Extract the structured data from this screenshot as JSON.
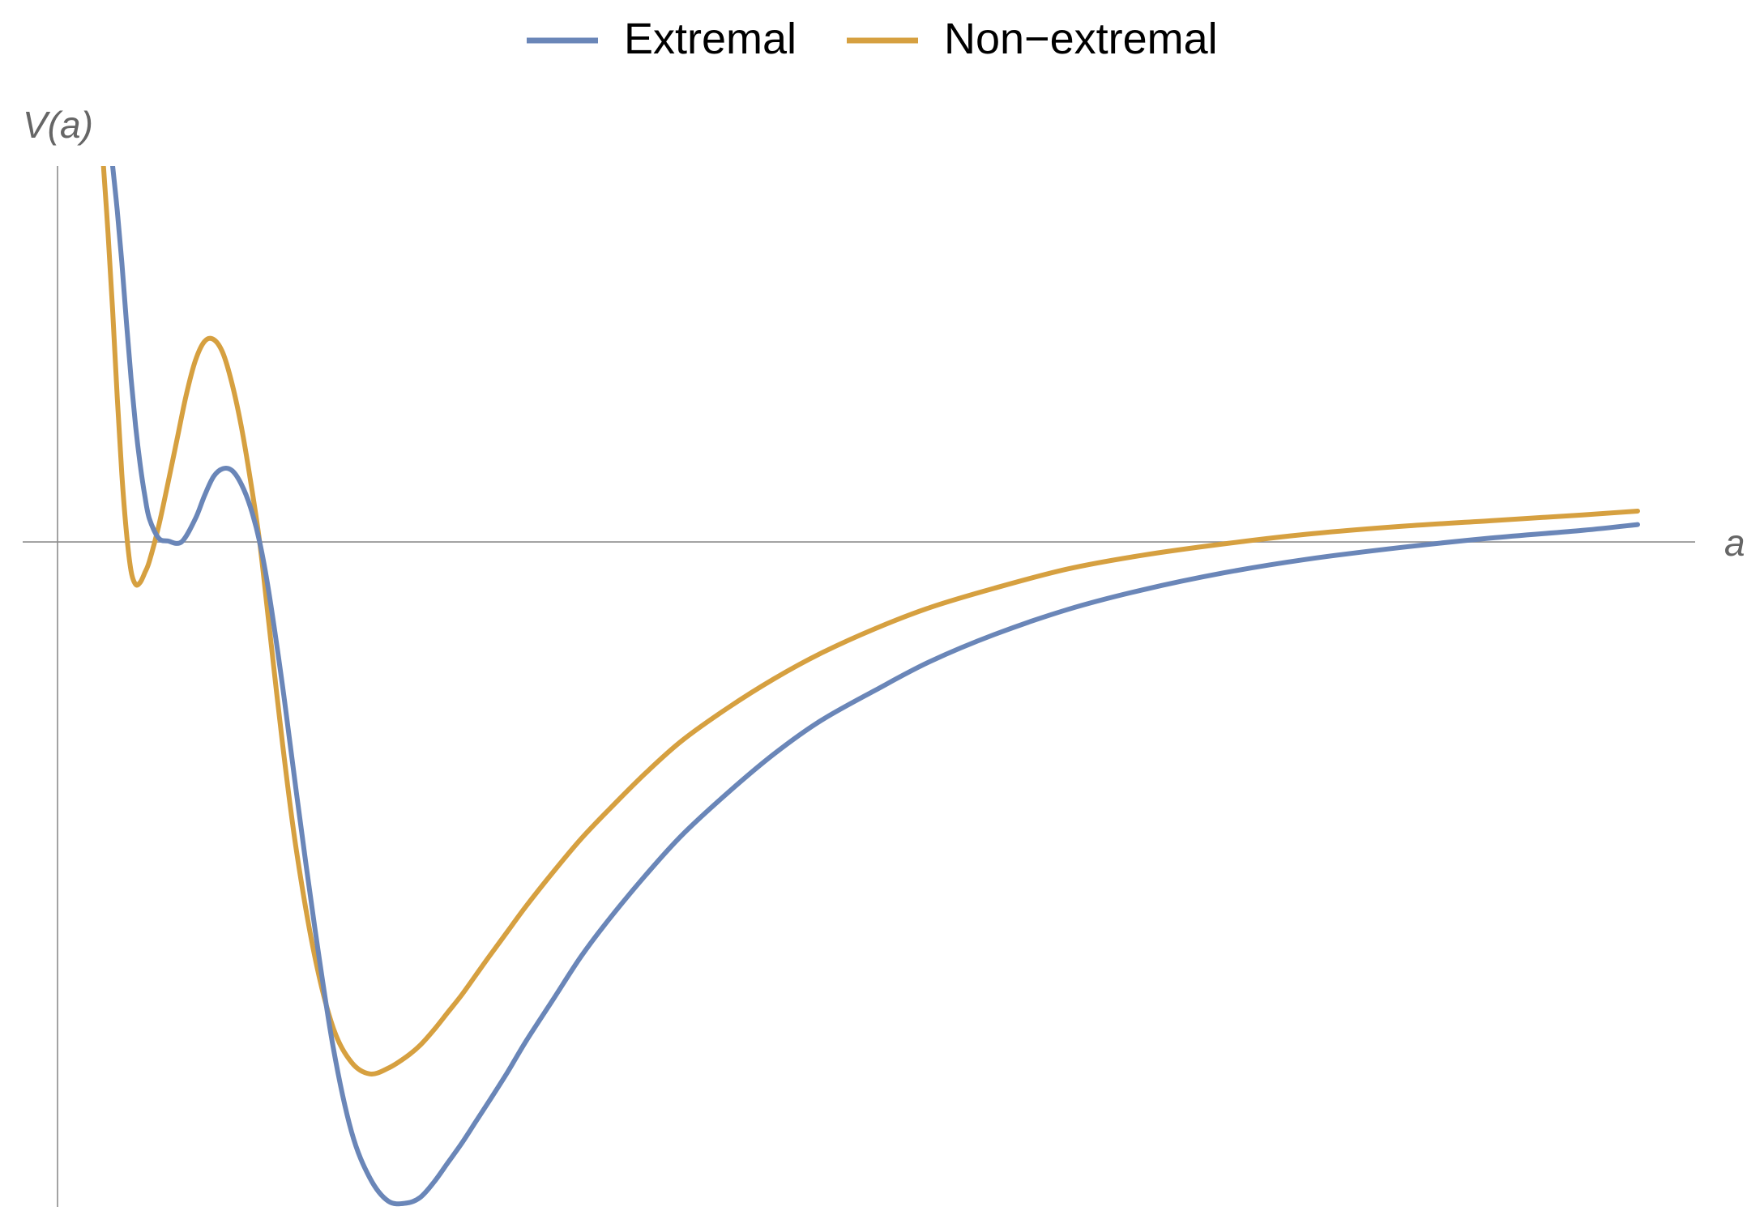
{
  "chart_data": {
    "type": "line",
    "xlabel": "a",
    "ylabel": "V(a)",
    "grid": false,
    "legend_placement": "top-center",
    "xlim": [
      0,
      17.5
    ],
    "ylim": [
      -3.45,
      1.95
    ],
    "series": [
      {
        "name": "Extremal",
        "color": "#6a86b8",
        "x": [
          0.6,
          0.65,
          0.7,
          0.75,
          0.8,
          0.85,
          0.9,
          0.95,
          1.0,
          1.1,
          1.2,
          1.35,
          1.5,
          1.6,
          1.7,
          1.8,
          1.9,
          2.0,
          2.1,
          2.2,
          2.3,
          2.45,
          2.6,
          2.8,
          3.0,
          3.2,
          3.4,
          3.6,
          3.8,
          3.95,
          4.1,
          4.25,
          4.4,
          4.55,
          4.7,
          4.9,
          5.1,
          5.4,
          5.7,
          6.0,
          6.4,
          6.8,
          7.3,
          7.8,
          8.3,
          8.9,
          9.5,
          10.2,
          11.0,
          11.8,
          12.7,
          13.6,
          14.6,
          15.6,
          16.6,
          17.2
        ],
        "y": [
          1.95,
          1.72,
          1.45,
          1.14,
          0.85,
          0.6,
          0.4,
          0.24,
          0.12,
          0.02,
          0.005,
          0.0,
          0.12,
          0.24,
          0.34,
          0.38,
          0.37,
          0.3,
          0.18,
          0.0,
          -0.26,
          -0.75,
          -1.3,
          -2.0,
          -2.62,
          -3.06,
          -3.3,
          -3.42,
          -3.43,
          -3.4,
          -3.32,
          -3.22,
          -3.12,
          -3.01,
          -2.9,
          -2.75,
          -2.59,
          -2.37,
          -2.15,
          -1.96,
          -1.73,
          -1.52,
          -1.3,
          -1.1,
          -0.93,
          -0.77,
          -0.62,
          -0.48,
          -0.35,
          -0.25,
          -0.16,
          -0.09,
          -0.03,
          0.02,
          0.06,
          0.09
        ]
      },
      {
        "name": "Non−extremal",
        "color": "#d6a040",
        "x": [
          0.5,
          0.55,
          0.6,
          0.65,
          0.7,
          0.75,
          0.8,
          0.85,
          0.9,
          0.95,
          1.0,
          1.1,
          1.2,
          1.3,
          1.4,
          1.5,
          1.6,
          1.7,
          1.8,
          1.9,
          2.0,
          2.1,
          2.2,
          2.3,
          2.45,
          2.6,
          2.8,
          3.0,
          3.2,
          3.4,
          3.6,
          3.8,
          3.95,
          4.1,
          4.25,
          4.4,
          4.55,
          4.7,
          4.9,
          5.1,
          5.4,
          5.7,
          6.0,
          6.4,
          6.8,
          7.3,
          7.8,
          8.3,
          8.9,
          9.5,
          10.2,
          11.0,
          11.8,
          12.7,
          13.6,
          14.6,
          15.6,
          16.6,
          17.2
        ],
        "y": [
          1.95,
          1.6,
          1.2,
          0.75,
          0.35,
          0.05,
          -0.15,
          -0.22,
          -0.21,
          -0.16,
          -0.1,
          0.08,
          0.3,
          0.53,
          0.76,
          0.94,
          1.04,
          1.05,
          0.98,
          0.82,
          0.6,
          0.32,
          0.0,
          -0.42,
          -1.05,
          -1.6,
          -2.15,
          -2.52,
          -2.7,
          -2.76,
          -2.73,
          -2.67,
          -2.61,
          -2.53,
          -2.44,
          -2.35,
          -2.25,
          -2.15,
          -2.02,
          -1.89,
          -1.71,
          -1.54,
          -1.39,
          -1.2,
          -1.03,
          -0.86,
          -0.71,
          -0.58,
          -0.45,
          -0.34,
          -0.24,
          -0.14,
          -0.07,
          -0.01,
          0.04,
          0.08,
          0.11,
          0.14,
          0.16
        ]
      }
    ]
  }
}
